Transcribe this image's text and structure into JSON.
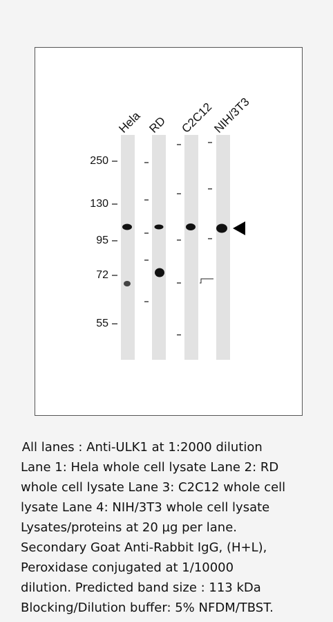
{
  "blot": {
    "lanes": [
      "Hela",
      "RD",
      "C2C12",
      "NIH/3T3"
    ],
    "markers": [
      "250",
      "130",
      "95",
      "72",
      "55"
    ]
  },
  "caption": {
    "lines": [
      " All lanes : Anti-ULK1 at 1:2000 dilution",
      "Lane 1: Hela whole cell lysate Lane 2: RD",
      "whole cell lysate Lane 3: C2C12 whole cell",
      "lysate Lane 4: NIH/3T3 whole cell lysate",
      "Lysates/proteins at 20 µg per lane.",
      "Secondary Goat Anti-Rabbit IgG, (H+L),",
      "Peroxidase conjugated at 1/10000",
      "dilution. Predicted band size : 113 kDa",
      "Blocking/Dilution buffer: 5% NFDM/TBST."
    ]
  }
}
